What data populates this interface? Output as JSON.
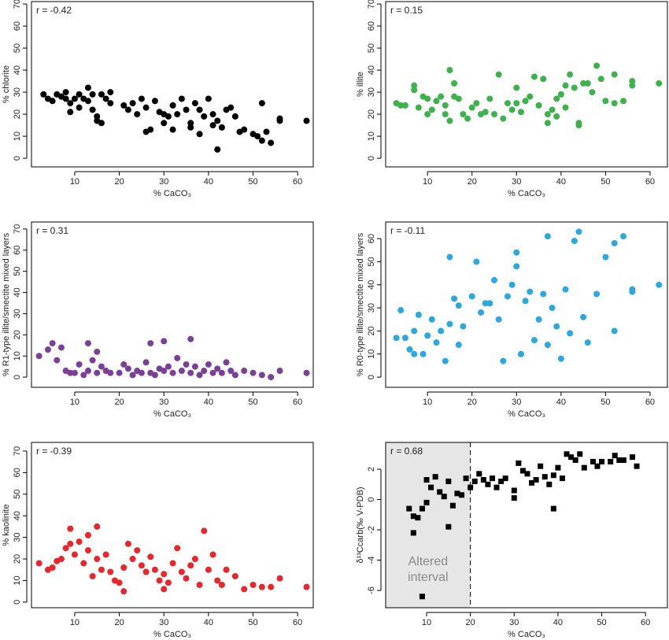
{
  "chart_data": [
    {
      "type": "scatter",
      "color": "#000000",
      "marker": "circle",
      "annotation": "r = -0.42",
      "xlabel": "% CaCO₃",
      "ylabel": "% chlorite",
      "xlim": [
        0.3,
        63.5
      ],
      "ylim": [
        -3.9,
        71.1
      ],
      "xticks": [
        10,
        20,
        30,
        40,
        50,
        60
      ],
      "yticks": [
        0,
        10,
        20,
        30,
        40,
        50,
        60,
        70
      ],
      "x": [
        3,
        4,
        5,
        6,
        7,
        8,
        8,
        9,
        9,
        10,
        11,
        11,
        12,
        13,
        13,
        14,
        14,
        15,
        15,
        16,
        16,
        17,
        18,
        18,
        21,
        22,
        23,
        24,
        25,
        26,
        26,
        27,
        28,
        29,
        30,
        30,
        31,
        32,
        32,
        33,
        34,
        35,
        36,
        36,
        37,
        38,
        38,
        39,
        40,
        41,
        41,
        42,
        42,
        43,
        44,
        45,
        46,
        47,
        48,
        50,
        51,
        52,
        52,
        53,
        54,
        56,
        56,
        62
      ],
      "values": [
        29,
        27,
        26,
        29,
        28,
        27,
        30,
        25,
        21,
        27,
        29,
        23,
        27,
        32,
        26,
        29,
        22,
        19,
        17,
        16,
        29,
        27,
        25,
        30,
        24,
        22,
        25,
        20,
        27,
        23,
        12,
        13,
        26,
        21,
        20,
        16,
        19,
        24,
        13,
        20,
        27,
        22,
        16,
        14,
        25,
        22,
        11,
        19,
        27,
        20,
        15,
        4,
        17,
        14,
        22,
        23,
        19,
        12,
        13,
        11,
        10,
        25,
        8,
        12,
        7,
        17,
        18,
        17
      ]
    },
    {
      "type": "scatter",
      "color": "#3cb34a",
      "marker": "circle",
      "annotation": "r = 0.15",
      "xlabel": "% CaCO₃",
      "ylabel": "% illite",
      "xlim": [
        0.6,
        63.9
      ],
      "ylim": [
        -3.9,
        71.1
      ],
      "xticks": [
        10,
        20,
        30,
        40,
        50,
        60
      ],
      "yticks": [
        0,
        10,
        20,
        30,
        40,
        50,
        60,
        70
      ],
      "x": [
        3,
        4,
        5,
        7,
        7,
        8,
        9,
        10,
        10,
        11,
        12,
        13,
        14,
        14,
        15,
        15,
        16,
        16,
        17,
        18,
        19,
        20,
        21,
        22,
        23,
        24,
        25,
        26,
        27,
        28,
        29,
        30,
        30,
        31,
        32,
        33,
        34,
        35,
        36,
        37,
        37,
        38,
        39,
        39,
        40,
        41,
        41,
        42,
        43,
        44,
        44,
        45,
        46,
        47,
        48,
        49,
        50,
        52,
        52,
        54,
        56,
        56,
        62
      ],
      "values": [
        25,
        24,
        24,
        31,
        33,
        23,
        28,
        27,
        20,
        22,
        26,
        28,
        20,
        24,
        17,
        40,
        28,
        34,
        27,
        20,
        18,
        23,
        25,
        20,
        21,
        27,
        20,
        38,
        18,
        25,
        22,
        32,
        25,
        21,
        26,
        28,
        37,
        24,
        36,
        20,
        16,
        22,
        27,
        19,
        29,
        23,
        33,
        38,
        32,
        15,
        16,
        34,
        34,
        30,
        42,
        36,
        26,
        38,
        25,
        26,
        35,
        33,
        34
      ]
    },
    {
      "type": "scatter",
      "color": "#7b3f98",
      "marker": "circle",
      "annotation": "r = 0.31",
      "xlabel": "% CaCO₃",
      "ylabel": "% R1-type illite/smectite mixed layers",
      "xlim": [
        0.3,
        63.5
      ],
      "ylim": [
        -4.8,
        73.3
      ],
      "xticks": [
        10,
        20,
        30,
        40,
        50,
        60
      ],
      "yticks": [
        0,
        10,
        20,
        30,
        40,
        50,
        60,
        70
      ],
      "x": [
        2,
        4,
        5,
        6,
        7,
        8,
        9,
        10,
        11,
        12,
        13,
        13,
        14,
        15,
        15,
        16,
        17,
        18,
        20,
        21,
        22,
        23,
        24,
        25,
        26,
        27,
        27,
        28,
        29,
        30,
        30,
        31,
        32,
        33,
        34,
        35,
        36,
        36,
        37,
        38,
        39,
        40,
        41,
        42,
        43,
        44,
        45,
        46,
        48,
        50,
        52,
        54,
        56,
        62
      ],
      "values": [
        10,
        13,
        16,
        8,
        14,
        3,
        2,
        2,
        6,
        1,
        16,
        3,
        8,
        12,
        2,
        5,
        3,
        2,
        2,
        6,
        4,
        1,
        3,
        2,
        7,
        16,
        2,
        1,
        4,
        17,
        3,
        5,
        2,
        9,
        3,
        6,
        18,
        2,
        5,
        1,
        3,
        6,
        2,
        4,
        2,
        7,
        3,
        1,
        3,
        2,
        1,
        0,
        3,
        2
      ]
    },
    {
      "type": "scatter",
      "color": "#29a9e0",
      "marker": "circle",
      "annotation": "r = -0.11",
      "xlabel": "% CaCO₃",
      "ylabel": "% R0-type illite/smectite mixed layers",
      "xlim": [
        0.6,
        63.9
      ],
      "ylim": [
        -4.4,
        67.2
      ],
      "xticks": [
        10,
        20,
        30,
        40,
        50,
        60
      ],
      "yticks": [
        0,
        10,
        20,
        30,
        40,
        50,
        60
      ],
      "x": [
        3,
        4,
        5,
        6,
        7,
        7,
        8,
        9,
        10,
        11,
        12,
        13,
        14,
        15,
        15,
        16,
        17,
        17,
        18,
        20,
        21,
        22,
        23,
        24,
        25,
        26,
        27,
        28,
        29,
        30,
        30,
        31,
        32,
        33,
        34,
        35,
        36,
        37,
        37,
        38,
        39,
        40,
        41,
        42,
        43,
        44,
        45,
        46,
        48,
        50,
        52,
        52,
        54,
        56,
        56,
        62
      ],
      "values": [
        17,
        29,
        17,
        12,
        20,
        10,
        27,
        10,
        18,
        25,
        15,
        20,
        7,
        52,
        23,
        34,
        31,
        14,
        22,
        35,
        50,
        28,
        32,
        32,
        42,
        25,
        7,
        35,
        40,
        54,
        48,
        10,
        33,
        37,
        16,
        25,
        36,
        61,
        14,
        30,
        22,
        8,
        38,
        19,
        59,
        63,
        26,
        15,
        36,
        52,
        58,
        20,
        61,
        37,
        38,
        40
      ]
    },
    {
      "type": "scatter",
      "color": "#e8262b",
      "marker": "circle",
      "annotation": "r = -0.39",
      "xlabel": "% CaCO₃",
      "ylabel": "% kaolinite",
      "xlim": [
        0.3,
        63.5
      ],
      "ylim": [
        -2.6,
        74
      ],
      "xticks": [
        10,
        20,
        30,
        40,
        50,
        60
      ],
      "yticks": [
        0,
        10,
        20,
        30,
        40,
        50,
        60,
        70
      ],
      "x": [
        2,
        4,
        5,
        6,
        7,
        8,
        9,
        9,
        10,
        11,
        12,
        13,
        13,
        14,
        15,
        15,
        16,
        17,
        18,
        19,
        20,
        21,
        21,
        22,
        23,
        24,
        25,
        26,
        27,
        28,
        29,
        30,
        30,
        31,
        32,
        33,
        34,
        35,
        36,
        37,
        38,
        39,
        40,
        41,
        42,
        43,
        44,
        46,
        48,
        50,
        52,
        54,
        56,
        62
      ],
      "values": [
        18,
        15,
        16,
        19,
        20,
        25,
        34,
        27,
        22,
        28,
        18,
        31,
        24,
        12,
        35,
        20,
        15,
        22,
        14,
        10,
        9,
        5,
        16,
        27,
        20,
        24,
        17,
        14,
        21,
        15,
        10,
        13,
        6,
        9,
        18,
        25,
        14,
        11,
        17,
        20,
        8,
        33,
        15,
        22,
        10,
        8,
        15,
        12,
        6,
        8,
        7,
        7,
        11,
        7
      ]
    },
    {
      "type": "scatter",
      "color": "#000000",
      "marker": "square",
      "annotation": "r = 0.68",
      "xlabel": "% CaCO₃",
      "ylabel": "δ¹³Ccarb(‰ V-PDB)",
      "xlim": [
        0.65,
        65
      ],
      "ylim": [
        -7.14,
        3.77
      ],
      "xticks": [
        10,
        20,
        30,
        40,
        50,
        60
      ],
      "yticks": [
        -6,
        -4,
        -2,
        0,
        2
      ],
      "highlight": {
        "x0": 0.65,
        "x1": 20,
        "label": [
          "Altered",
          "interval"
        ]
      },
      "x": [
        6,
        7,
        7,
        8,
        9,
        9,
        10,
        10,
        11,
        12,
        13,
        14,
        15,
        15,
        16,
        17,
        18,
        19,
        20,
        21,
        22,
        23,
        24,
        25,
        26,
        27,
        28,
        30,
        30,
        31,
        32,
        33,
        34,
        35,
        36,
        37,
        38,
        39,
        39,
        40,
        41,
        42,
        43,
        44,
        45,
        46,
        48,
        49,
        50,
        52,
        53,
        54,
        55,
        57,
        58
      ],
      "values": [
        -0.6,
        -2.2,
        -1.1,
        -1.2,
        -6.4,
        -0.6,
        -0.2,
        1.3,
        0.8,
        1.5,
        0.5,
        0.2,
        -1.8,
        1.2,
        -0.4,
        0.4,
        0.3,
        1.4,
        0.8,
        1.2,
        1.7,
        1.3,
        1.0,
        1.4,
        0.8,
        1.2,
        1.4,
        0.1,
        0.6,
        2.4,
        1.9,
        1.7,
        1.1,
        1.3,
        2.2,
        1.5,
        1.0,
        -0.6,
        1.6,
        2.1,
        1.4,
        3.0,
        2.8,
        2.6,
        3.0,
        2.1,
        2.5,
        2.2,
        2.5,
        2.5,
        2.9,
        2.6,
        2.6,
        2.8,
        2.2
      ]
    }
  ]
}
